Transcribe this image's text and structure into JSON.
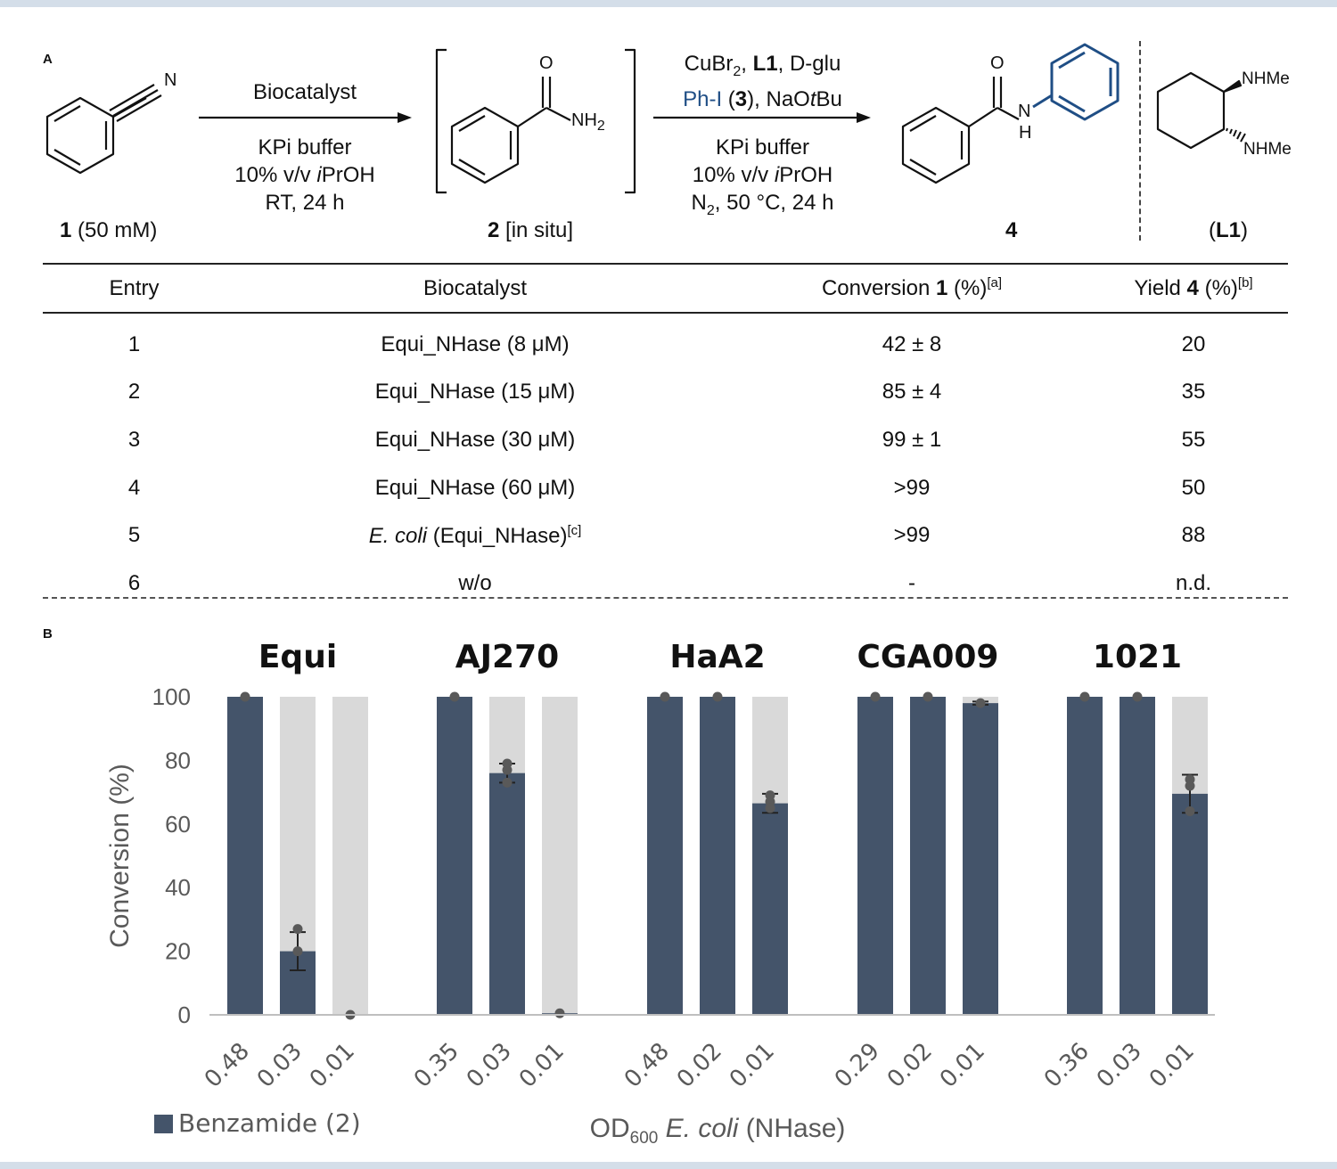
{
  "panel_a": {
    "letter": "A",
    "step1": {
      "reagent": "Biocatalyst",
      "conditions": [
        "KPi buffer",
        "10% v/v iPrOH",
        "RT, 24 h"
      ]
    },
    "step2": {
      "line1_a": "CuBr",
      "line1_sub": "2",
      "line1_b": ", ",
      "line1_l1": "L1",
      "line1_c": ", D-glu",
      "line2_a": "Ph-I",
      "line2_b": " (",
      "line2_num": "3",
      "line2_c": "), NaO",
      "line2_t": "t",
      "line2_d": "Bu",
      "conditions_1": "KPi buffer",
      "conditions_2": "10% v/v iPrOH",
      "conditions_3_a": "N",
      "conditions_3_sub": "2",
      "conditions_3_b": ", 50 °C, 24 h"
    },
    "compounds": {
      "c1_num": "1",
      "c1_rest": " (50 mM)",
      "c2_num": "2",
      "c2_rest": " [in situ]",
      "c4_num": "4",
      "l1_a": "(",
      "l1_b": "L1",
      "l1_c": ")"
    },
    "atoms": {
      "n": "N",
      "o": "O",
      "nh2": "NH",
      "nh2_sub": "2",
      "nh_n": "N",
      "nh_h": "H",
      "nhme": "NHMe"
    }
  },
  "table": {
    "headers": {
      "entry": "Entry",
      "biocatalyst": "Biocatalyst",
      "conversion_a": "Conversion ",
      "conversion_b": "1",
      "conversion_c": " (%)",
      "conversion_note": "[a]",
      "yield_a": "Yield ",
      "yield_b": "4",
      "yield_c": " (%)",
      "yield_note": "[b]"
    },
    "rows": [
      {
        "entry": "1",
        "biocatalyst": "Equi_NHase (8 μM)",
        "conversion": "42 ± 8",
        "yield": "20"
      },
      {
        "entry": "2",
        "biocatalyst": "Equi_NHase (15 μM)",
        "conversion": "85 ± 4",
        "yield": "35"
      },
      {
        "entry": "3",
        "biocatalyst": "Equi_NHase (30 μM)",
        "conversion": "99 ± 1",
        "yield": "55"
      },
      {
        "entry": "4",
        "biocatalyst": "Equi_NHase (60 μM)",
        "conversion": ">99",
        "yield": "50"
      },
      {
        "entry": "5",
        "biocatalyst_italic": "E. coli",
        "biocatalyst_rest": " (Equi_NHase)",
        "biocatalyst_note": "[c]",
        "conversion": ">99",
        "yield": "88"
      },
      {
        "entry": "6",
        "biocatalyst": "w/o",
        "conversion": "-",
        "yield": "n.d."
      }
    ]
  },
  "panel_b": {
    "letter": "B"
  },
  "chart_data": {
    "type": "bar",
    "ylabel": "Conversion (%)",
    "ylim": [
      0,
      100
    ],
    "yticks": [
      0,
      20,
      40,
      60,
      80,
      100
    ],
    "xlabel_a": "OD",
    "xlabel_sub": "600",
    "xlabel_italic": " E. coli",
    "xlabel_rest": " (NHase)",
    "legend": {
      "label": "Benzamide (2)",
      "placement": "bottom-left"
    },
    "groups": [
      {
        "name": "Equi",
        "od": [
          "0.48",
          "0.03",
          "0.01"
        ],
        "values": [
          100,
          20,
          0
        ],
        "err": [
          0,
          6,
          0
        ],
        "points": [
          [
            100
          ],
          [
            27,
            20
          ],
          [
            0
          ]
        ]
      },
      {
        "name": "AJ270",
        "od": [
          "0.35",
          "0.03",
          "0.01"
        ],
        "values": [
          100,
          76,
          0.5
        ],
        "err": [
          0,
          3,
          0
        ],
        "points": [
          [
            100
          ],
          [
            79,
            77,
            73
          ],
          [
            0.5
          ]
        ]
      },
      {
        "name": "HaA2",
        "od": [
          "0.48",
          "0.02",
          "0.01"
        ],
        "values": [
          100,
          100,
          66.5
        ],
        "err": [
          0,
          0,
          3
        ],
        "points": [
          [
            100
          ],
          [
            100
          ],
          [
            69,
            67,
            65
          ]
        ]
      },
      {
        "name": "CGA009",
        "od": [
          "0.29",
          "0.02",
          "0.01"
        ],
        "values": [
          100,
          100,
          98
        ],
        "err": [
          0,
          0,
          0.5
        ],
        "points": [
          [
            100
          ],
          [
            100
          ],
          [
            98
          ]
        ]
      },
      {
        "name": "1021",
        "od": [
          "0.36",
          "0.03",
          "0.01"
        ],
        "values": [
          100,
          100,
          69.5
        ],
        "err": [
          0,
          0,
          6
        ],
        "points": [
          [
            100
          ],
          [
            100
          ],
          [
            74,
            72,
            64
          ]
        ]
      }
    ],
    "colors": {
      "bar": "#44546a",
      "background_bar": "#d9d9d9",
      "points": "#595959",
      "axis_text": "#595959"
    }
  }
}
